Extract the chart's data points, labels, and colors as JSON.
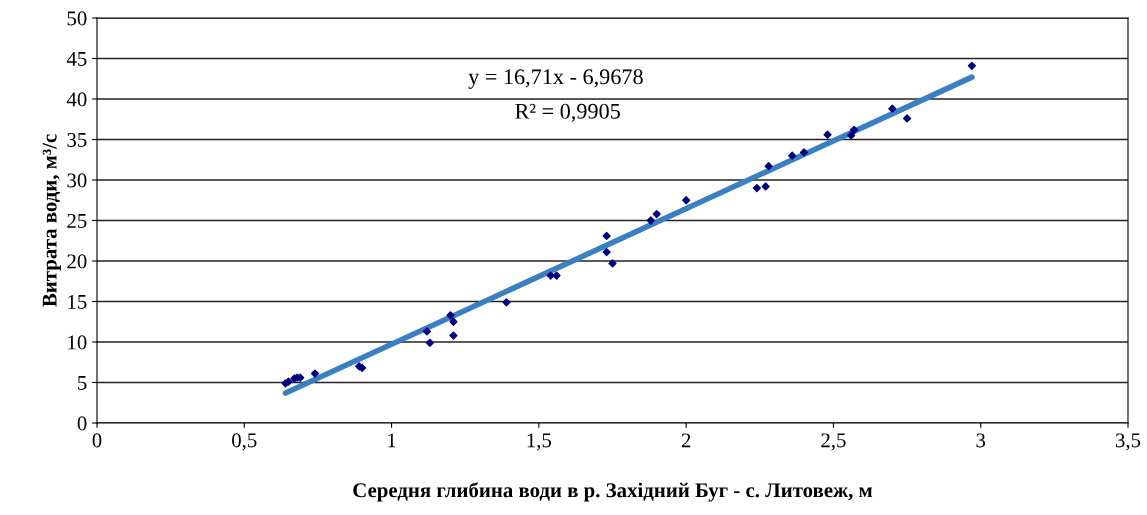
{
  "chart_data": {
    "type": "scatter",
    "xlabel": "Середня глибина води в р. Західний Буг - с. Литовеж, м",
    "ylabel": "Витрата води, м³/с",
    "annotations": [
      "y = 16,71x - 6,9678",
      "R² = 0,9905"
    ],
    "marker": "diamond",
    "grid": "y",
    "legend": false,
    "xlim": [
      0,
      3.5
    ],
    "xticks": [
      0,
      {
        "value": 0.5,
        "label": "0,5"
      },
      1,
      {
        "value": 1.5,
        "label": "1,5"
      },
      2,
      {
        "value": 2.5,
        "label": "2,5"
      },
      3,
      {
        "value": 3.5,
        "label": "3,5"
      }
    ],
    "ylim": [
      0,
      50
    ],
    "yticks": [
      0,
      5,
      10,
      15,
      20,
      25,
      30,
      35,
      40,
      45,
      50
    ],
    "series": [
      {
        "color": "#000080",
        "x": [
          0.64,
          0.65,
          0.67,
          0.68,
          0.69,
          0.74,
          0.89,
          0.9,
          1.12,
          1.13,
          1.2,
          1.21,
          1.21,
          1.39,
          1.54,
          1.56,
          1.73,
          1.73,
          1.75,
          1.88,
          1.9,
          2.0,
          2.24,
          2.27,
          2.28,
          2.36,
          2.4,
          2.48,
          2.56,
          2.57,
          2.7,
          2.75,
          2.97
        ],
        "values": [
          4.9,
          5.1,
          5.5,
          5.6,
          5.6,
          6.1,
          7.0,
          6.8,
          11.3,
          9.9,
          13.3,
          12.5,
          10.8,
          14.9,
          18.2,
          18.2,
          23.1,
          21.1,
          19.7,
          25.0,
          25.8,
          27.5,
          29.0,
          29.2,
          31.7,
          33.0,
          33.4,
          35.6,
          35.5,
          36.2,
          38.8,
          37.6,
          44.1
        ]
      },
      {
        "type": "line",
        "marker": "none",
        "color": "#3a7fc1",
        "x": [
          0.64,
          2.97
        ],
        "values": [
          3.7,
          42.7
        ]
      }
    ]
  }
}
